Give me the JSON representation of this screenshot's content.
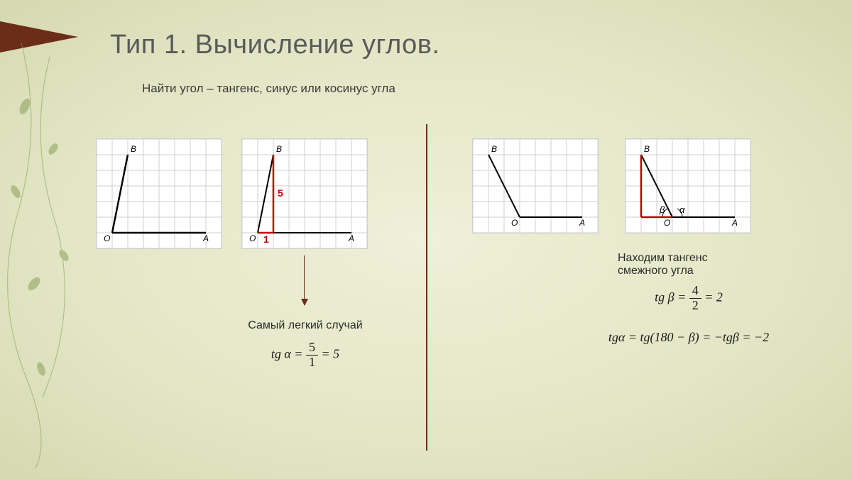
{
  "title": "Тип 1.  Вычисление углов.",
  "subtitle": "Найти угол – тангенс, синус или косинус угла",
  "left": {
    "caption": "Самый легкий случай",
    "formula_lhs": "tg α =",
    "frac_num": "5",
    "frac_den": "1",
    "formula_rhs": "= 5",
    "annot_v": "5",
    "annot_h": "1"
  },
  "right": {
    "caption": "Находим тангенс смежного угла",
    "formula1_lhs": "tg β =",
    "frac_num": "4",
    "frac_den": "2",
    "formula1_rhs": "= 2",
    "formula2": "tgα = tg(180 − β) = −tgβ = −2",
    "angle_a": "α",
    "angle_b": "β"
  },
  "labels": {
    "O": "O",
    "A": "A",
    "B": "B"
  },
  "grids": {
    "left1": {
      "cols": 8,
      "rows": 7,
      "cell": 22,
      "O": [
        1,
        6
      ],
      "A": [
        7,
        6
      ],
      "B": [
        2,
        1
      ],
      "lines": [
        {
          "from": "O",
          "to": "A",
          "w": 2.5,
          "c": "#000"
        },
        {
          "from": "O",
          "to": "B",
          "w": 2.5,
          "c": "#000"
        }
      ]
    },
    "left2": {
      "cols": 8,
      "rows": 7,
      "cell": 22,
      "O": [
        1,
        6
      ],
      "A": [
        7,
        6
      ],
      "B": [
        2,
        1
      ],
      "lines": [
        {
          "from": "O",
          "to": "A",
          "w": 2,
          "c": "#000"
        },
        {
          "from": "O",
          "to": "B",
          "w": 2,
          "c": "#000"
        },
        {
          "from": [
            2,
            6
          ],
          "to": [
            2,
            1
          ],
          "w": 2.5,
          "c": "#c00000"
        },
        {
          "from": [
            1,
            6
          ],
          "to": [
            2,
            6
          ],
          "w": 2.5,
          "c": "#c00000"
        }
      ]
    },
    "right1": {
      "cols": 8,
      "rows": 6,
      "cell": 22,
      "O": [
        3,
        5
      ],
      "A": [
        7,
        5
      ],
      "B": [
        1,
        1
      ],
      "lines": [
        {
          "from": "O",
          "to": "A",
          "w": 2,
          "c": "#000"
        },
        {
          "from": "O",
          "to": "B",
          "w": 2,
          "c": "#000"
        }
      ]
    },
    "right2": {
      "cols": 8,
      "rows": 6,
      "cell": 22,
      "O": [
        3,
        5
      ],
      "A": [
        7,
        5
      ],
      "B": [
        1,
        1
      ],
      "lines": [
        {
          "from": "O",
          "to": "A",
          "w": 2,
          "c": "#000"
        },
        {
          "from": "O",
          "to": "B",
          "w": 2,
          "c": "#000"
        },
        {
          "from": [
            1,
            5
          ],
          "to": [
            1,
            1
          ],
          "w": 2.5,
          "c": "#c00000"
        },
        {
          "from": [
            1,
            5
          ],
          "to": [
            3,
            5
          ],
          "w": 2.5,
          "c": "#c00000"
        }
      ]
    }
  },
  "style": {
    "grid_line": "#cfcfcf",
    "grid_bg": "#ffffff",
    "accent": "#6b2d18",
    "red": "#c00000",
    "bg_inner": "#eef0d8",
    "bg_outer": "#d5d9b0",
    "vine": "#8aa05a"
  }
}
